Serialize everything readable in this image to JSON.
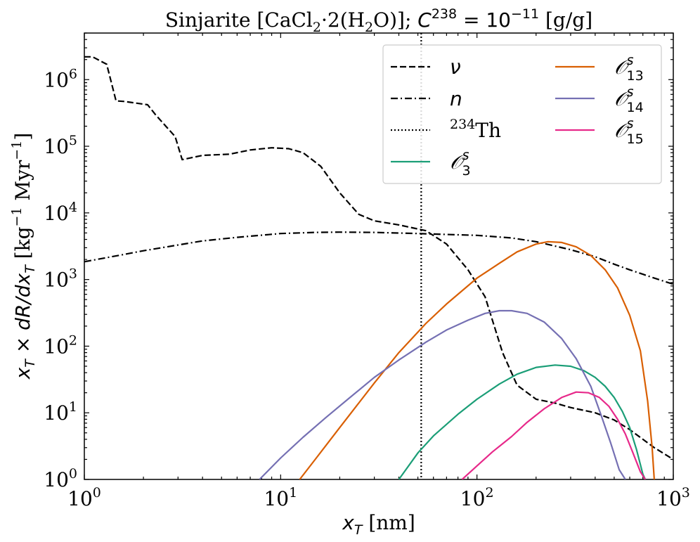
{
  "chart_data": {
    "type": "line",
    "title": "Sinjarite [CaCl₂·2(H₂O)]; C²³⁸ = 10⁻¹¹ [g/g]",
    "title_parts": {
      "mineral": "Sinjarite [CaCl",
      "sub1": "2",
      "mid": "·2(H",
      "sub2": "2",
      "tail": "O)]; ",
      "c": "C",
      "c_sup": "238",
      "eq": " = 10",
      "exp": "−11",
      "unit": " [g/g]"
    },
    "xlabel": "x_T [nm]",
    "xlabel_parts": {
      "x": "x",
      "sub": "T",
      "unit": " [nm]"
    },
    "ylabel": "x_T × dR/dx_T [kg⁻¹ Myr⁻¹]",
    "ylabel_parts": {
      "math": "x",
      "sub": "T",
      "times": " × dR/dx",
      "sub2": "T",
      "unit1": " [kg",
      "sup1": "−1",
      "unit2": " Myr",
      "sup2": "−1",
      "unit3": "]"
    },
    "xscale": "log",
    "yscale": "log",
    "xlim": [
      1,
      1000
    ],
    "ylim": [
      1,
      5000000
    ],
    "x_ticks": [
      {
        "value": 1,
        "base": "10",
        "exp": "0"
      },
      {
        "value": 10,
        "base": "10",
        "exp": "1"
      },
      {
        "value": 100,
        "base": "10",
        "exp": "2"
      },
      {
        "value": 1000,
        "base": "10",
        "exp": "3"
      }
    ],
    "y_ticks": [
      {
        "value": 1,
        "base": "10",
        "exp": "0"
      },
      {
        "value": 10,
        "base": "10",
        "exp": "1"
      },
      {
        "value": 100,
        "base": "10",
        "exp": "2"
      },
      {
        "value": 1000,
        "base": "10",
        "exp": "3"
      },
      {
        "value": 10000,
        "base": "10",
        "exp": "4"
      },
      {
        "value": 100000,
        "base": "10",
        "exp": "5"
      },
      {
        "value": 1000000,
        "base": "10",
        "exp": "6"
      }
    ],
    "legend_position": "upper-right",
    "series": [
      {
        "name": "ν",
        "label_main": "ν",
        "label_sup": "",
        "label_sub": "",
        "color": "#000000",
        "dash": "dashed",
        "x": [
          1,
          1.1,
          1.3,
          1.45,
          1.6,
          2.1,
          2.3,
          2.6,
          2.9,
          3.15,
          4,
          5.5,
          7,
          9,
          11,
          13,
          16,
          20,
          25,
          30,
          40,
          55,
          70,
          90,
          110,
          135,
          160,
          200,
          250,
          300,
          400,
          500,
          600,
          700,
          800,
          1000
        ],
        "y": [
          2200000,
          2200000,
          1700000,
          480000,
          470000,
          420000,
          300000,
          200000,
          140000,
          63000,
          73000,
          76000,
          88000,
          95000,
          92000,
          80000,
          50000,
          20000,
          9500,
          7600,
          6600,
          5400,
          3400,
          1400,
          550,
          80,
          26,
          16,
          14,
          12,
          10,
          7.8,
          5.6,
          4,
          3,
          2
        ]
      },
      {
        "name": "n",
        "label_main": "n",
        "label_sup": "",
        "label_sub": "",
        "color": "#000000",
        "dash": "dashdot",
        "x": [
          1,
          1.5,
          2,
          3,
          4,
          6,
          10,
          15,
          20,
          30,
          50,
          70,
          100,
          150,
          200,
          300,
          400,
          500,
          600,
          700,
          800,
          1000
        ],
        "y": [
          1850,
          2300,
          2700,
          3300,
          3800,
          4300,
          4900,
          5100,
          5150,
          5100,
          4900,
          4750,
          4600,
          4200,
          3700,
          2800,
          2200,
          1700,
          1400,
          1200,
          1050,
          850
        ]
      },
      {
        "name": "234Th",
        "label_main": "Th",
        "label_sup": "234",
        "label_sub": "",
        "color": "#000000",
        "dash": "dotted",
        "vline_x": 52
      },
      {
        "name": "O_3^s",
        "label_main": "𝒪",
        "label_sup": "s",
        "label_sub": "3",
        "color": "#1b9e77",
        "dash": "solid",
        "x": [
          40,
          50,
          60,
          80,
          100,
          130,
          160,
          200,
          250,
          300,
          350,
          400,
          450,
          500,
          550,
          600,
          650,
          700,
          720
        ],
        "y": [
          1,
          2.5,
          4.5,
          9.5,
          16,
          27,
          38,
          48,
          52,
          50,
          43,
          34,
          25,
          17,
          10.5,
          6,
          2.8,
          1.2,
          1
        ]
      },
      {
        "name": "O_13^s",
        "label_main": "𝒪",
        "label_sup": "s",
        "label_sub": "13",
        "color": "#d95f02",
        "dash": "solid",
        "x": [
          12.5,
          15,
          20,
          30,
          40,
          55,
          70,
          100,
          130,
          160,
          200,
          230,
          270,
          320,
          380,
          450,
          520,
          600,
          680,
          740,
          780,
          800
        ],
        "y": [
          1,
          2,
          6,
          28,
          80,
          220,
          430,
          1050,
          1750,
          2600,
          3400,
          3700,
          3600,
          3100,
          2300,
          1400,
          750,
          290,
          85,
          15,
          3,
          1
        ]
      },
      {
        "name": "O_14^s",
        "label_main": "𝒪",
        "label_sup": "s",
        "label_sub": "14",
        "color": "#7570b3",
        "dash": "solid",
        "x": [
          7.8,
          10,
          13,
          17,
          22,
          30,
          40,
          55,
          70,
          90,
          110,
          130,
          150,
          180,
          220,
          270,
          320,
          380,
          430,
          480,
          530,
          570
        ],
        "y": [
          1,
          2.1,
          4.3,
          8.5,
          16,
          34,
          62,
          115,
          175,
          245,
          310,
          340,
          340,
          310,
          230,
          130,
          65,
          25,
          9,
          3.5,
          1.4,
          1
        ]
      },
      {
        "name": "O_15^s",
        "label_main": "𝒪",
        "label_sup": "s",
        "label_sub": "15",
        "color": "#e7298a",
        "dash": "solid",
        "x": [
          84,
          100,
          120,
          150,
          180,
          220,
          270,
          320,
          370,
          420,
          470,
          520,
          570,
          620,
          680,
          720
        ],
        "y": [
          1,
          1.6,
          2.6,
          4.4,
          7.2,
          11.5,
          17,
          20.5,
          20,
          17,
          12.5,
          8,
          4.8,
          2.6,
          1.3,
          1
        ]
      }
    ]
  }
}
